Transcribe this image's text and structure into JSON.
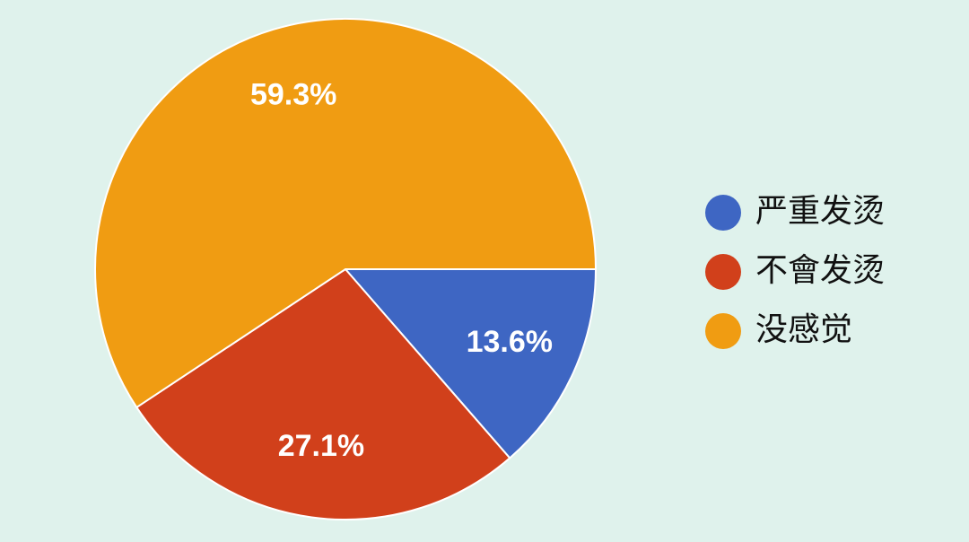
{
  "chart_data": {
    "type": "pie",
    "categories": [
      "严重发烫",
      "不會发烫",
      "没感觉"
    ],
    "values": [
      13.6,
      27.1,
      59.3
    ],
    "value_labels": [
      "13.6%",
      "27.1%",
      "59.3%"
    ],
    "colors": [
      "#3e66c3",
      "#d1401b",
      "#f09c12"
    ],
    "legend": "right"
  }
}
